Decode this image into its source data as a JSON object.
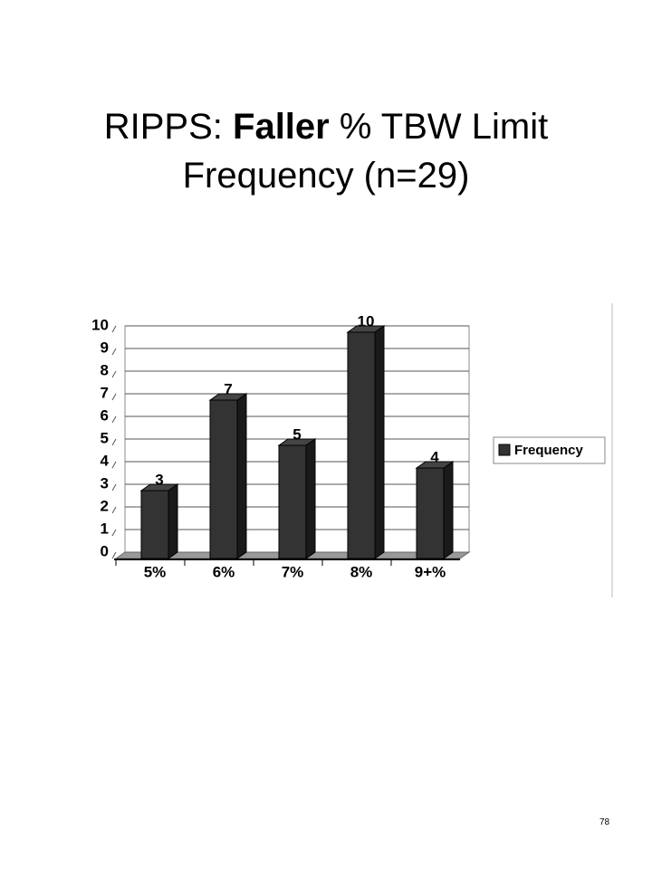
{
  "slide": {
    "title_parts": [
      "RIPPS: ",
      "Faller",
      " % TBW Limit",
      "Frequency  (n=29)"
    ],
    "page_number": "78"
  },
  "chart_data": {
    "type": "bar3d",
    "categories": [
      "5%",
      "6%",
      "7%",
      "8%",
      "9+%"
    ],
    "series": [
      {
        "name": "Frequency",
        "color": "#333333",
        "values": [
          3,
          7,
          5,
          10,
          4
        ]
      }
    ],
    "ylim": [
      0,
      10
    ],
    "yticks": [
      0,
      1,
      2,
      3,
      4,
      5,
      6,
      7,
      8,
      9,
      10
    ],
    "grid": true,
    "legend": "right"
  }
}
